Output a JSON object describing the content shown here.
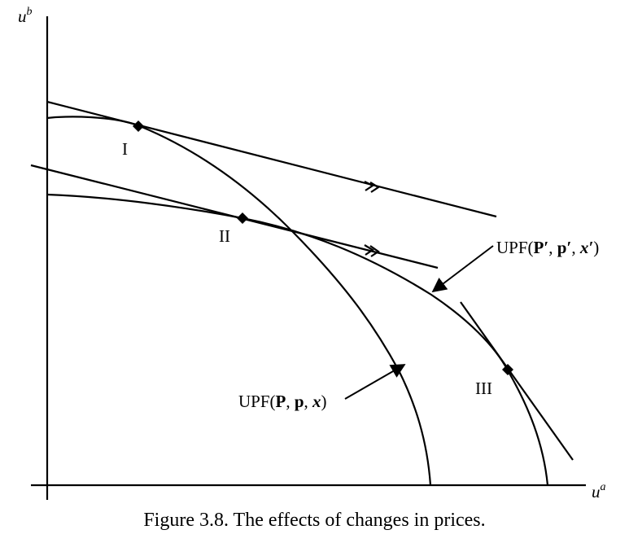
{
  "axes": {
    "y_label": {
      "base": "u",
      "sup": "b"
    },
    "x_label": {
      "base": "u",
      "sup": "a"
    }
  },
  "points": {
    "point_1": "I",
    "point_2": "II",
    "point_3": "III"
  },
  "curve_labels": {
    "upf_old": {
      "prefix": "UPF(",
      "P": "P",
      "sep1": ", ",
      "p": "p",
      "sep2": ", ",
      "x": "x",
      "suffix": ")"
    },
    "upf_new": {
      "prefix": "UPF(",
      "P": "P′",
      "sep1": ", ",
      "p": "p′",
      "sep2": ", ",
      "x": "x′",
      "suffix": ")"
    }
  },
  "caption": "Figure 3.8.  The effects of changes in prices."
}
